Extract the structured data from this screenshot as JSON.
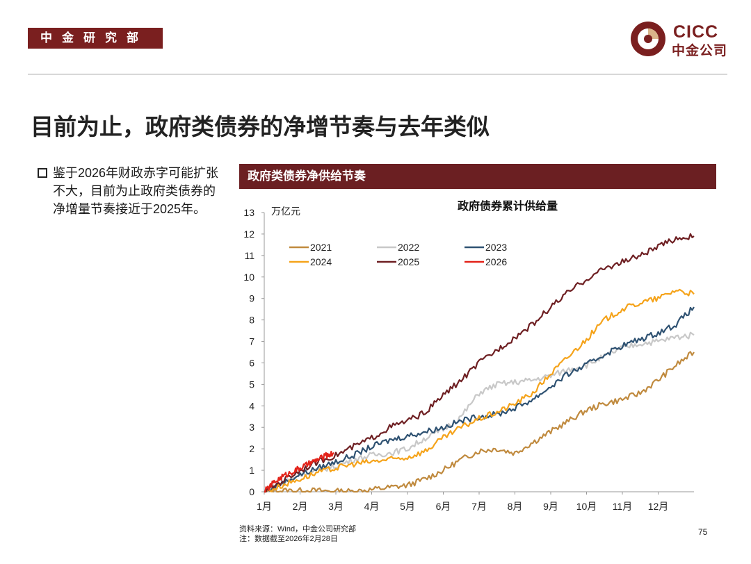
{
  "header": {
    "dept_label": "中金研究部",
    "logo_en": "CICC",
    "logo_cn": "中金公司"
  },
  "page_title": "目前为止，政府类债券的净增节奏与去年类似",
  "bullet_text": "鉴于2026年财政赤字可能扩张不大，目前为止政府类债券的净增量节奏接近于2025年。",
  "chart_header": "政府类债券净供给节奏",
  "footnote": {
    "source": "资料来源：Wind，中金公司研究部",
    "note": "注：数据截至2026年2月28日"
  },
  "page_number": "75",
  "colors": {
    "brand": "#7a1f1f",
    "header_bg": "#6b1f22"
  },
  "chart_data": {
    "type": "line",
    "title": "政府债券累计供给量",
    "ylabel": "万亿元",
    "ylim": [
      0,
      13
    ],
    "yticks": [
      "0",
      "1",
      "2",
      "3",
      "4",
      "5",
      "6",
      "7",
      "8",
      "9",
      "10",
      "11",
      "12",
      "13"
    ],
    "x_range": [
      0,
      12
    ],
    "x_ticks": [
      "1月",
      "2月",
      "3月",
      "4月",
      "5月",
      "6月",
      "7月",
      "8月",
      "9月",
      "10月",
      "11月",
      "12月"
    ],
    "legend_position": "upper-left",
    "series": [
      {
        "name": "2021",
        "color": "#c08a3e",
        "points": [
          [
            0,
            0
          ],
          [
            0.5,
            0.05
          ],
          [
            1,
            0.05
          ],
          [
            1.5,
            0.05
          ],
          [
            2,
            0.02
          ],
          [
            2.5,
            0.02
          ],
          [
            3,
            0.1
          ],
          [
            3.5,
            0.2
          ],
          [
            4,
            0.3
          ],
          [
            4.5,
            0.6
          ],
          [
            5,
            1.0
          ],
          [
            5.5,
            1.5
          ],
          [
            6,
            1.9
          ],
          [
            6.5,
            2.0
          ],
          [
            7,
            1.8
          ],
          [
            7.5,
            2.3
          ],
          [
            8,
            2.8
          ],
          [
            8.5,
            3.3
          ],
          [
            9,
            3.8
          ],
          [
            9.5,
            4.1
          ],
          [
            10,
            4.3
          ],
          [
            10.5,
            4.6
          ],
          [
            11,
            5.2
          ],
          [
            11.5,
            5.9
          ],
          [
            12,
            6.5
          ]
        ]
      },
      {
        "name": "2022",
        "color": "#c8c8c8",
        "points": [
          [
            0,
            0
          ],
          [
            0.5,
            0.4
          ],
          [
            1,
            0.8
          ],
          [
            1.5,
            1.0
          ],
          [
            2,
            1.2
          ],
          [
            2.5,
            1.5
          ],
          [
            3,
            1.7
          ],
          [
            3.5,
            1.8
          ],
          [
            4,
            2.0
          ],
          [
            4.5,
            2.5
          ],
          [
            5,
            2.9
          ],
          [
            5.5,
            3.5
          ],
          [
            6,
            4.6
          ],
          [
            6.5,
            5.0
          ],
          [
            7,
            5.1
          ],
          [
            7.5,
            5.2
          ],
          [
            8,
            5.4
          ],
          [
            8.5,
            5.7
          ],
          [
            9,
            5.9
          ],
          [
            9.5,
            6.3
          ],
          [
            10,
            6.7
          ],
          [
            10.5,
            6.9
          ],
          [
            11,
            7.0
          ],
          [
            11.5,
            7.2
          ],
          [
            12,
            7.3
          ]
        ]
      },
      {
        "name": "2023",
        "color": "#2f5272",
        "points": [
          [
            0,
            0
          ],
          [
            0.5,
            0.4
          ],
          [
            1,
            0.8
          ],
          [
            1.5,
            1.1
          ],
          [
            2,
            1.4
          ],
          [
            2.5,
            1.7
          ],
          [
            3,
            2.1
          ],
          [
            3.5,
            2.4
          ],
          [
            4,
            2.6
          ],
          [
            4.5,
            2.8
          ],
          [
            5,
            3.0
          ],
          [
            5.5,
            3.3
          ],
          [
            6,
            3.5
          ],
          [
            6.5,
            3.6
          ],
          [
            7,
            3.9
          ],
          [
            7.5,
            4.3
          ],
          [
            8,
            4.9
          ],
          [
            8.5,
            5.5
          ],
          [
            9,
            5.9
          ],
          [
            9.5,
            6.4
          ],
          [
            10,
            6.8
          ],
          [
            10.5,
            7.1
          ],
          [
            11,
            7.4
          ],
          [
            11.5,
            7.8
          ],
          [
            12,
            8.6
          ]
        ]
      },
      {
        "name": "2024",
        "color": "#f5a31a",
        "points": [
          [
            0,
            0
          ],
          [
            0.5,
            0.3
          ],
          [
            1,
            0.6
          ],
          [
            1.5,
            0.9
          ],
          [
            2,
            1.1
          ],
          [
            2.5,
            1.3
          ],
          [
            3,
            1.4
          ],
          [
            3.5,
            1.5
          ],
          [
            4,
            1.6
          ],
          [
            4.5,
            1.9
          ],
          [
            5,
            2.5
          ],
          [
            5.5,
            3.0
          ],
          [
            6,
            3.4
          ],
          [
            6.5,
            3.7
          ],
          [
            7,
            4.1
          ],
          [
            7.5,
            4.6
          ],
          [
            8,
            5.5
          ],
          [
            8.5,
            6.3
          ],
          [
            9,
            7.1
          ],
          [
            9.5,
            8.0
          ],
          [
            10,
            8.5
          ],
          [
            10.5,
            8.8
          ],
          [
            11,
            9.0
          ],
          [
            11.5,
            9.4
          ],
          [
            12,
            9.2
          ]
        ]
      },
      {
        "name": "2025",
        "color": "#6e1f22",
        "points": [
          [
            0,
            0
          ],
          [
            0.5,
            0.5
          ],
          [
            1,
            1.0
          ],
          [
            1.5,
            1.4
          ],
          [
            2,
            1.7
          ],
          [
            2.5,
            2.1
          ],
          [
            3,
            2.5
          ],
          [
            3.5,
            3.0
          ],
          [
            4,
            3.3
          ],
          [
            4.5,
            3.7
          ],
          [
            5,
            4.5
          ],
          [
            5.5,
            5.2
          ],
          [
            6,
            6.0
          ],
          [
            6.5,
            6.6
          ],
          [
            7,
            7.2
          ],
          [
            7.5,
            7.8
          ],
          [
            8,
            8.6
          ],
          [
            8.5,
            9.3
          ],
          [
            9,
            9.9
          ],
          [
            9.5,
            10.4
          ],
          [
            10,
            10.7
          ],
          [
            10.5,
            11.0
          ],
          [
            11,
            11.4
          ],
          [
            11.5,
            11.8
          ],
          [
            12,
            11.9
          ]
        ]
      },
      {
        "name": "2026",
        "color": "#e32219",
        "points": [
          [
            0,
            0
          ],
          [
            0.25,
            0.4
          ],
          [
            0.5,
            0.7
          ],
          [
            0.75,
            0.9
          ],
          [
            1,
            1.1
          ],
          [
            1.25,
            1.3
          ],
          [
            1.5,
            1.5
          ],
          [
            1.75,
            1.7
          ],
          [
            1.95,
            1.8
          ]
        ]
      }
    ]
  }
}
